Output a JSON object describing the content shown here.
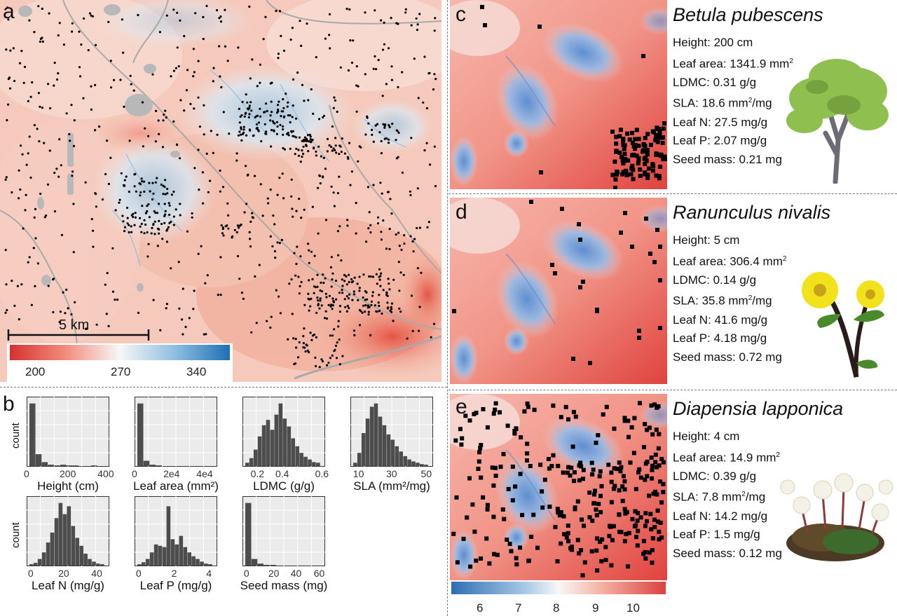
{
  "panels": {
    "a": "a",
    "b": "b",
    "c": "c",
    "d": "d",
    "e": "e"
  },
  "map_a": {
    "scalebar_label": "5 km",
    "colorbar_ticks": [
      "200",
      "270",
      "340"
    ],
    "colors": {
      "low": "#d7302f",
      "mid": "#f7f7f7",
      "high": "#1f6fb5",
      "lake": "#b8b8b8",
      "river": "#a6a6a6"
    }
  },
  "histograms": {
    "y_label": "count",
    "items": [
      {
        "label": "Height (cm)",
        "ticks": [
          "0",
          "200",
          "400"
        ],
        "bars": [
          0.95,
          0.18,
          0.06,
          0.02,
          0.01,
          0.02,
          0.01,
          0.01,
          0.0,
          0.0,
          0.01,
          0.0
        ]
      },
      {
        "label": "Leaf area (mm²)",
        "ticks": [
          "0",
          "2e4",
          "4e4"
        ],
        "bars": [
          0.95,
          0.08,
          0.02,
          0.01,
          0.0,
          0.0,
          0.0,
          0.0,
          0.0,
          0.0,
          0.0,
          0.0
        ]
      },
      {
        "label": "LDMC (g/g)",
        "ticks": [
          "0.2",
          "0.4",
          "0.6"
        ],
        "bars": [
          0.05,
          0.12,
          0.25,
          0.45,
          0.62,
          0.7,
          0.55,
          0.78,
          0.95,
          0.72,
          0.6,
          0.42,
          0.3,
          0.2,
          0.14,
          0.1,
          0.06,
          0.05
        ]
      },
      {
        "label": "SLA (mm²/mg)",
        "ticks": [
          "10",
          "30",
          "50"
        ],
        "bars": [
          0.05,
          0.2,
          0.5,
          0.72,
          0.9,
          0.95,
          0.75,
          0.62,
          0.48,
          0.4,
          0.3,
          0.22,
          0.15,
          0.1,
          0.07,
          0.05,
          0.03,
          0.02
        ]
      },
      {
        "label": "Leaf N (mg/g)",
        "ticks": [
          "0",
          "20",
          "40"
        ],
        "bars": [
          0.02,
          0.04,
          0.1,
          0.2,
          0.35,
          0.5,
          0.72,
          0.95,
          0.78,
          0.9,
          0.6,
          0.42,
          0.3,
          0.18,
          0.1,
          0.06,
          0.03,
          0.02
        ]
      },
      {
        "label": "Leaf P (mg/g)",
        "ticks": [
          "0",
          "2",
          "4"
        ],
        "bars": [
          0.02,
          0.05,
          0.1,
          0.2,
          0.32,
          0.3,
          0.28,
          0.9,
          0.4,
          0.32,
          0.45,
          0.28,
          0.2,
          0.14,
          0.1,
          0.06,
          0.03,
          0.02
        ]
      },
      {
        "label": "Seed mass (mg)",
        "ticks": [
          "0",
          "20",
          "40",
          "60"
        ],
        "bars": [
          0.95,
          0.1,
          0.03,
          0.01,
          0.01,
          0.0,
          0.0,
          0.0,
          0.0,
          0.0,
          0.0,
          0.0
        ]
      }
    ]
  },
  "species": [
    {
      "name": "Betula pubescens",
      "height": "Height: 200 cm",
      "leaf_area_prefix": "Leaf area: 1341.9 mm",
      "ldmc": "LDMC: 0.31 g/g",
      "sla_prefix": "SLA: 18.6 mm",
      "sla_suffix": "/mg",
      "leaf_n": "Leaf N: 27.5 mg/g",
      "leaf_p": "Leaf P: 2.07 mg/g",
      "seed_mass": "Seed mass: 0.21 mg"
    },
    {
      "name": "Ranunculus nivalis",
      "height": "Height: 5 cm",
      "leaf_area_prefix": "Leaf area: 306.4 mm",
      "ldmc": "LDMC: 0.14 g/g",
      "sla_prefix": "SLA: 35.8 mm",
      "sla_suffix": "/mg",
      "leaf_n": "Leaf N: 41.6 mg/g",
      "leaf_p": "Leaf P: 4.18 mg/g",
      "seed_mass": "Seed mass: 0.72 mg"
    },
    {
      "name": "Diapensia lapponica",
      "height": "Height: 4 cm",
      "leaf_area_prefix": "Leaf area: 14.9 mm",
      "ldmc": "LDMC: 0.39 g/g",
      "sla_prefix": "SLA: 7.8 mm",
      "sla_suffix": "/mg",
      "leaf_n": "Leaf N: 14.2 mg/g",
      "leaf_p": "Leaf P: 1.5 mg/g",
      "seed_mass": "Seed mass: 0.12 mg"
    }
  ],
  "superscript_two": "2",
  "bottom_colorbar_ticks": [
    "6",
    "7",
    "8",
    "9",
    "10"
  ],
  "bottom_colorbar_colors": {
    "low": "#2f6db3",
    "mid": "#f7f7f7",
    "high": "#d9423f"
  },
  "plant_icons": [
    "tree-icon",
    "buttercup-icon",
    "cushion-plant-icon"
  ]
}
